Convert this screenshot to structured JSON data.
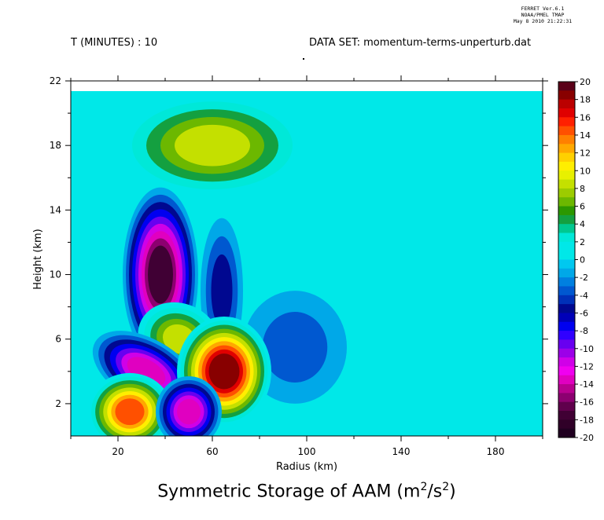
{
  "header": {
    "time_label": "T (MINUTES) : 10",
    "dataset_label": "DATA SET: momentum-terms-unperturb.dat",
    "ferret_line1": "FERRET  Ver.6.1",
    "ferret_line2": "NOAA/PMEL TMAP",
    "ferret_line3": "May  8 2010 21:22:31"
  },
  "chart_data": {
    "type": "heatmap",
    "title_text": "Symmetric Storage of AAM (m",
    "title_sup1": "2",
    "title_mid": "/s",
    "title_sup2": "2",
    "title_end": ")",
    "xlabel": "Radius (km)",
    "ylabel": "Height (km)",
    "xlim": [
      0,
      200
    ],
    "ylim": [
      0,
      22
    ],
    "x_ticks": [
      "20",
      "60",
      "100",
      "140",
      "180"
    ],
    "y_ticks": [
      "2",
      "6",
      "10",
      "14",
      "18",
      "22"
    ],
    "colorbar": {
      "min": -20,
      "max": 20,
      "step": 2,
      "labels": [
        "20",
        "18",
        "16",
        "14",
        "12",
        "10",
        "8",
        "6",
        "4",
        "2",
        "0",
        "-2",
        "-4",
        "-6",
        "-8",
        "-10",
        "-12",
        "-14",
        "-16",
        "-18",
        "-20"
      ],
      "colors": [
        "#5a0018",
        "#8b0000",
        "#c00000",
        "#ee0000",
        "#ff3a00",
        "#ff7a00",
        "#ffb000",
        "#ffe000",
        "#f0ff00",
        "#c8e000",
        "#90c800",
        "#58b000",
        "#1e9000",
        "#00a060",
        "#00d0b0",
        "#00e8e8",
        "#00c0f0",
        "#0090e0",
        "#0060d0",
        "#0030b0",
        "#000090",
        "#0000e0",
        "#3000ff",
        "#7000e8",
        "#b000e0",
        "#e000e0",
        "#c00090",
        "#800060",
        "#500040"
      ],
      "fill_colors_top_to_bottom": [
        "#5a0018",
        "#880000",
        "#bb0000",
        "#e00000",
        "#ff2000",
        "#ff5000",
        "#ff8000",
        "#ffa800",
        "#ffd000",
        "#ffee00",
        "#e8f000",
        "#c4e000",
        "#9ccc00",
        "#6cb800",
        "#2c9800",
        "#14a040",
        "#00c890",
        "#00e8d8",
        "#00e8e8",
        "#00e8e8",
        "#00c8f0",
        "#00a8e8",
        "#0080e0",
        "#0058d0",
        "#0030b8",
        "#000890",
        "#0000b8",
        "#0000f0",
        "#3000ff",
        "#6800f0",
        "#9c00e8",
        "#d000e8",
        "#f000f0",
        "#e000c0",
        "#b80090",
        "#8c0070",
        "#60004c",
        "#400034",
        "#300028",
        "#200020"
      ]
    },
    "features": [
      {
        "name": "positive-lobe-upper",
        "x": 60,
        "y": 18,
        "peak": 9
      },
      {
        "name": "negative-lobe-mid",
        "x": 38,
        "y": 10,
        "peak": -18
      },
      {
        "name": "negative-lobe-mid-secondary",
        "x": 64,
        "y": 9,
        "peak": -6
      },
      {
        "name": "negative-tail-right",
        "x": 95,
        "y": 5.5,
        "peak": -3
      },
      {
        "name": "positive-lobe-lower",
        "x": 46,
        "y": 6,
        "peak": 9
      },
      {
        "name": "positive-core-lower",
        "x": 65,
        "y": 4,
        "peak": 20
      },
      {
        "name": "negative-band-lower",
        "x": 32,
        "y": 4,
        "peak": -13
      },
      {
        "name": "positive-core-bottom",
        "x": 25,
        "y": 1.5,
        "peak": 16
      },
      {
        "name": "negative-core-bottom",
        "x": 50,
        "y": 1.5,
        "peak": -14
      }
    ]
  }
}
